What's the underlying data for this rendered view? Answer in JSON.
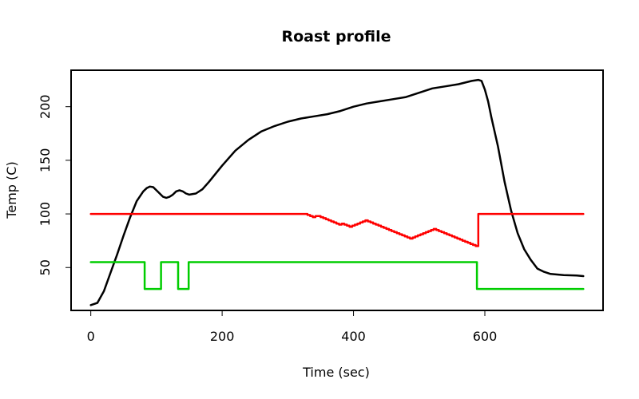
{
  "chart_data": {
    "type": "line",
    "title": "Roast profile",
    "xlabel": "Time (sec)",
    "ylabel": "Temp (C)",
    "xlim": [
      -30,
      780
    ],
    "ylim": [
      10,
      234
    ],
    "xticks": [
      0,
      200,
      400,
      600
    ],
    "yticks": [
      50,
      100,
      150,
      200
    ],
    "grid": false,
    "legend": "none",
    "series": [
      {
        "color": "#000000",
        "step": false,
        "x": [
          0,
          10,
          20,
          30,
          40,
          50,
          60,
          70,
          80,
          85,
          90,
          95,
          100,
          110,
          115,
          120,
          125,
          130,
          135,
          140,
          145,
          150,
          160,
          170,
          180,
          200,
          220,
          240,
          260,
          280,
          300,
          320,
          340,
          360,
          380,
          400,
          420,
          440,
          460,
          480,
          500,
          520,
          540,
          560,
          580,
          590,
          595,
          600,
          605,
          610,
          620,
          630,
          640,
          650,
          660,
          670,
          680,
          690,
          700,
          720,
          740,
          750
        ],
        "y": [
          15,
          17,
          28,
          45,
          62,
          80,
          97,
          112,
          121,
          124,
          125.5,
          125,
          122,
          116,
          115,
          116,
          118,
          121,
          122,
          121,
          119,
          118,
          119,
          123,
          130,
          145,
          159,
          169,
          177,
          182,
          186,
          189,
          191,
          193,
          196,
          200,
          203,
          205,
          207,
          209,
          213,
          217,
          219,
          221,
          224,
          225,
          224,
          216,
          205,
          190,
          163,
          130,
          103,
          82,
          67,
          57,
          49,
          46,
          44,
          43,
          42.5,
          42
        ]
      },
      {
        "color": "#ff0000",
        "step": true,
        "x": [
          0,
          326,
          330,
          334,
          338,
          342,
          346,
          350,
          354,
          358,
          362,
          366,
          370,
          374,
          378,
          382,
          386,
          390,
          394,
          398,
          402,
          406,
          410,
          414,
          418,
          422,
          426,
          430,
          434,
          438,
          442,
          446,
          450,
          454,
          458,
          462,
          466,
          470,
          474,
          478,
          482,
          486,
          490,
          494,
          498,
          502,
          506,
          510,
          514,
          518,
          522,
          526,
          530,
          534,
          538,
          542,
          546,
          550,
          554,
          558,
          562,
          566,
          570,
          574,
          578,
          582,
          586,
          590,
          600,
          750
        ],
        "y": [
          100,
          100,
          99,
          98,
          97,
          98,
          98,
          97,
          96,
          95,
          94,
          93,
          92,
          91,
          90,
          91,
          90,
          89,
          88,
          89,
          90,
          91,
          92,
          93,
          94,
          93,
          92,
          91,
          90,
          89,
          88,
          87,
          86,
          85,
          84,
          83,
          82,
          81,
          80,
          79,
          78,
          77,
          78,
          79,
          80,
          81,
          82,
          83,
          84,
          85,
          86,
          85,
          84,
          83,
          82,
          81,
          80,
          79,
          78,
          77,
          76,
          75,
          74,
          73,
          72,
          71,
          70,
          100,
          100,
          100
        ]
      },
      {
        "color": "#00cd00",
        "step": true,
        "x": [
          0,
          82,
          107,
          133,
          149,
          588,
          750
        ],
        "y": [
          55,
          30,
          55,
          30,
          55,
          30,
          30
        ]
      }
    ]
  }
}
